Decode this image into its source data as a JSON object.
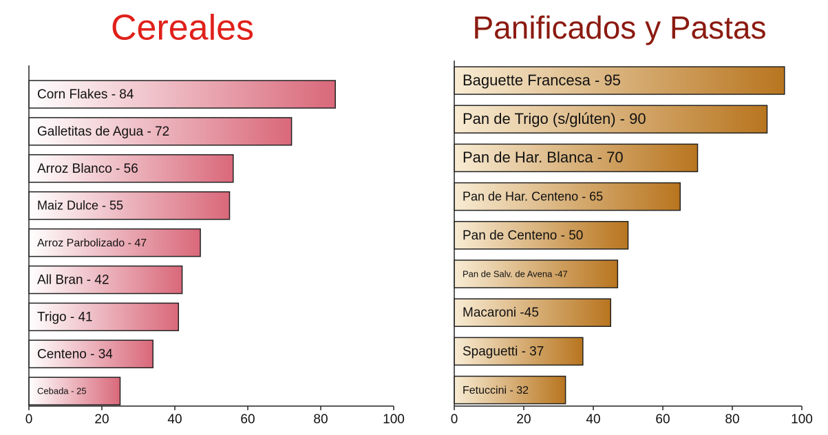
{
  "chart_data": [
    {
      "type": "bar",
      "title": "Cereales",
      "title_color": "#e0201a",
      "color": "#d9687a",
      "categories": [
        "Corn Flakes - 84",
        "Galletitas de Agua - 72",
        "Arroz Blanco - 56",
        "Maiz Dulce - 55",
        "Arroz Parbolizado - 47",
        "All Bran - 42",
        "Trigo - 41",
        "Centeno - 34",
        "Cebada - 25"
      ],
      "values": [
        84,
        72,
        56,
        55,
        47,
        42,
        41,
        34,
        25
      ],
      "xlim": [
        0,
        100
      ],
      "xticks": [
        0,
        20,
        40,
        60,
        80,
        100
      ]
    },
    {
      "type": "bar",
      "title": "Panificados y Pastas",
      "title_color": "#8b1a10",
      "color": "#b8751f",
      "categories": [
        "Baguette Francesa - 95",
        "Pan de Trigo (s/glúten) - 90",
        "Pan de Har. Blanca - 70",
        "Pan de Har. Centeno - 65",
        "Pan de Centeno - 50",
        "Pan de Salv. de Avena -47",
        "Macaroni -45",
        "Spaguetti - 37",
        "Fetuccini - 32"
      ],
      "values": [
        95,
        90,
        70,
        65,
        50,
        47,
        45,
        37,
        32
      ],
      "xlim": [
        0,
        100
      ],
      "xticks": [
        0,
        20,
        40,
        60,
        80,
        100
      ]
    }
  ]
}
